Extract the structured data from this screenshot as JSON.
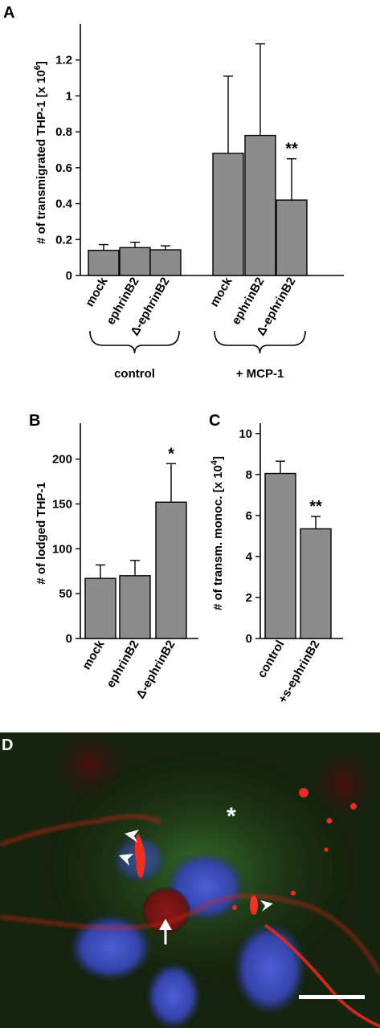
{
  "panel_letters": {
    "a": "A",
    "b": "B",
    "c": "C",
    "d": "D"
  },
  "chart_data": [
    {
      "id": "A",
      "type": "bar",
      "ylabel": "# of transmigrated THP-1 [x 10",
      "ylabel_sup": "6",
      "ylabel_close": "]",
      "ylim": [
        0,
        1.4
      ],
      "yticks": [
        "0",
        "0.2",
        "0.4",
        "0.6",
        "0.8",
        "1",
        "1.2"
      ],
      "categories": [
        "mock",
        "ephrinB2",
        "Δ-ephrinB2",
        "mock",
        "ephrinB2",
        "Δ-ephrinB2"
      ],
      "values": [
        0.14,
        0.155,
        0.143,
        0.68,
        0.78,
        0.42
      ],
      "errors": [
        0.032,
        0.03,
        0.022,
        0.43,
        0.51,
        0.23
      ],
      "annotations": [
        "",
        "",
        "",
        "",
        "",
        "**"
      ],
      "groups": [
        {
          "label": "control",
          "from": 0,
          "to": 2
        },
        {
          "label": "+ MCP-1",
          "from": 3,
          "to": 5
        }
      ]
    },
    {
      "id": "B",
      "type": "bar",
      "ylabel": "# of lodged THP-1",
      "ylim": [
        0,
        240
      ],
      "yticks": [
        "0",
        "50",
        "100",
        "150",
        "200"
      ],
      "categories": [
        "mock",
        "ephrinB2",
        "Δ-ephrinB2"
      ],
      "values": [
        67,
        70,
        152
      ],
      "errors": [
        15,
        17,
        43
      ],
      "annotations": [
        "",
        "",
        "*"
      ]
    },
    {
      "id": "C",
      "type": "bar",
      "ylabel": "# of transm. monoc. [x 10",
      "ylabel_sup": "4",
      "ylabel_close": "]",
      "ylim": [
        0,
        10.5
      ],
      "yticks": [
        "0",
        "2",
        "4",
        "6",
        "8",
        "10"
      ],
      "categories": [
        "control",
        "+s-ephrinB2"
      ],
      "values": [
        8.05,
        5.35
      ],
      "errors": [
        0.6,
        0.6
      ],
      "annotations": [
        "",
        "**"
      ]
    }
  ],
  "micrograph": {
    "asterisk": "*",
    "colors": {
      "background": "#17240f",
      "membrane": "#e52a20",
      "nucleus": "#3b4cc0",
      "cytoplasm": "#2e6b2a"
    }
  }
}
